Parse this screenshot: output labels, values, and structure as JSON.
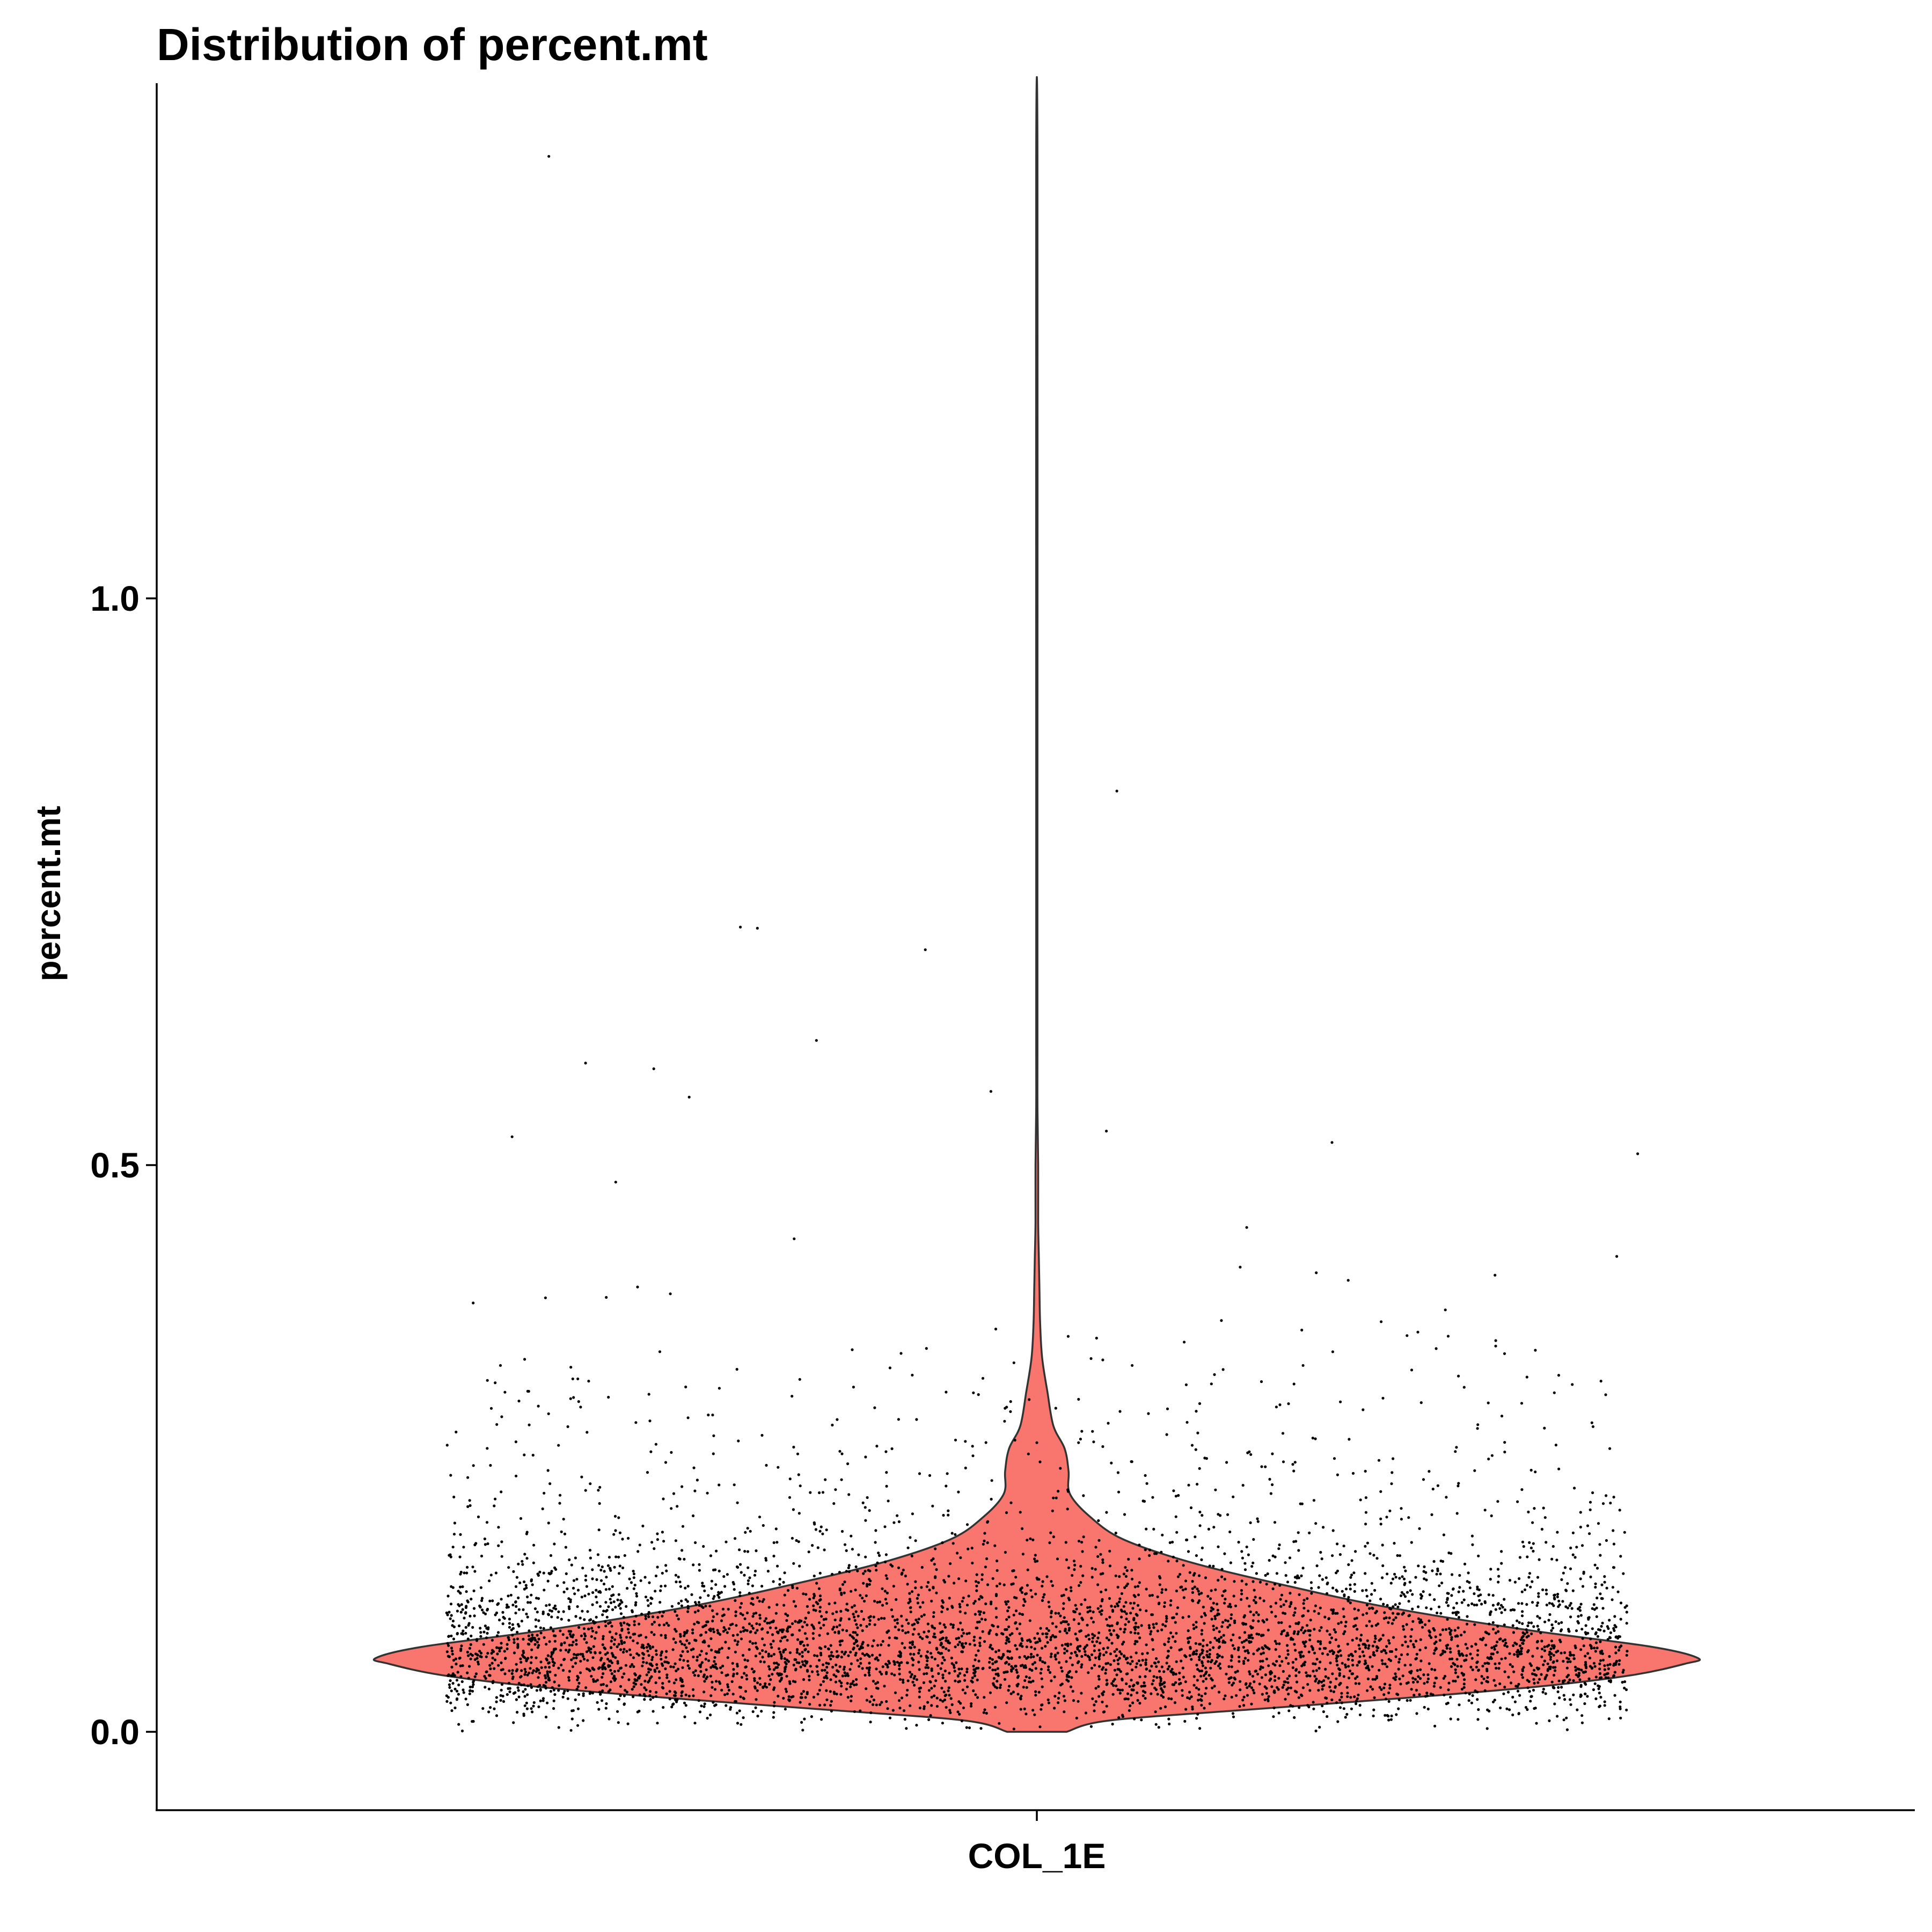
{
  "chart_data": {
    "type": "violin",
    "title": "Distribution of percent.mt",
    "xlabel": "",
    "ylabel": "percent.mt",
    "ylim": [
      -0.07,
      1.45
    ],
    "yticks": [
      {
        "value": 0.0,
        "label": "0.0"
      },
      {
        "value": 0.5,
        "label": "0.5"
      },
      {
        "value": 1.0,
        "label": "1.0"
      }
    ],
    "categories": [
      "COL_1E"
    ],
    "fill_color": "#F8766D",
    "outline_color": "#333333",
    "point_color": "#000000",
    "grid": false,
    "legend": "none",
    "density_profile": [
      {
        "y": 0.0,
        "d": 0.045
      },
      {
        "y": 0.01,
        "d": 0.11
      },
      {
        "y": 0.02,
        "d": 0.33
      },
      {
        "y": 0.03,
        "d": 0.56
      },
      {
        "y": 0.04,
        "d": 0.76
      },
      {
        "y": 0.05,
        "d": 0.9
      },
      {
        "y": 0.06,
        "d": 0.98
      },
      {
        "y": 0.065,
        "d": 1.0
      },
      {
        "y": 0.075,
        "d": 0.93
      },
      {
        "y": 0.09,
        "d": 0.74
      },
      {
        "y": 0.11,
        "d": 0.53
      },
      {
        "y": 0.13,
        "d": 0.37
      },
      {
        "y": 0.15,
        "d": 0.23
      },
      {
        "y": 0.17,
        "d": 0.13
      },
      {
        "y": 0.19,
        "d": 0.08
      },
      {
        "y": 0.21,
        "d": 0.05
      },
      {
        "y": 0.23,
        "d": 0.048
      },
      {
        "y": 0.25,
        "d": 0.042
      },
      {
        "y": 0.27,
        "d": 0.025
      },
      {
        "y": 0.3,
        "d": 0.016
      },
      {
        "y": 0.33,
        "d": 0.008
      },
      {
        "y": 0.36,
        "d": 0.005
      },
      {
        "y": 0.39,
        "d": 0.004
      },
      {
        "y": 0.42,
        "d": 0.003
      },
      {
        "y": 0.45,
        "d": 0.002
      },
      {
        "y": 0.5,
        "d": 0.002
      },
      {
        "y": 0.55,
        "d": 0.001
      },
      {
        "y": 0.6,
        "d": 0.001
      },
      {
        "y": 0.7,
        "d": 0.001
      },
      {
        "y": 0.83,
        "d": 0.001
      },
      {
        "y": 1.39,
        "d": 0.001
      }
    ],
    "n_points": 5200,
    "outliers": [
      {
        "x": -0.372,
        "y": 1.39
      },
      {
        "x": 0.061,
        "y": 0.83
      },
      {
        "x": -0.226,
        "y": 0.71
      },
      {
        "x": -0.213,
        "y": 0.709
      },
      {
        "x": -0.085,
        "y": 0.69
      },
      {
        "x": -0.168,
        "y": 0.61
      },
      {
        "x": -0.344,
        "y": 0.59
      },
      {
        "x": -0.292,
        "y": 0.585
      },
      {
        "x": -0.265,
        "y": 0.56
      },
      {
        "x": -0.035,
        "y": 0.565
      },
      {
        "x": 0.053,
        "y": 0.53
      },
      {
        "x": 0.225,
        "y": 0.52
      },
      {
        "x": -0.4,
        "y": 0.525
      },
      {
        "x": 0.458,
        "y": 0.51
      },
      {
        "x": -0.321,
        "y": 0.485
      },
      {
        "x": 0.16,
        "y": 0.445
      },
      {
        "x": -0.185,
        "y": 0.435
      },
      {
        "x": 0.155,
        "y": 0.41
      },
      {
        "x": 0.213,
        "y": 0.405
      }
    ]
  }
}
